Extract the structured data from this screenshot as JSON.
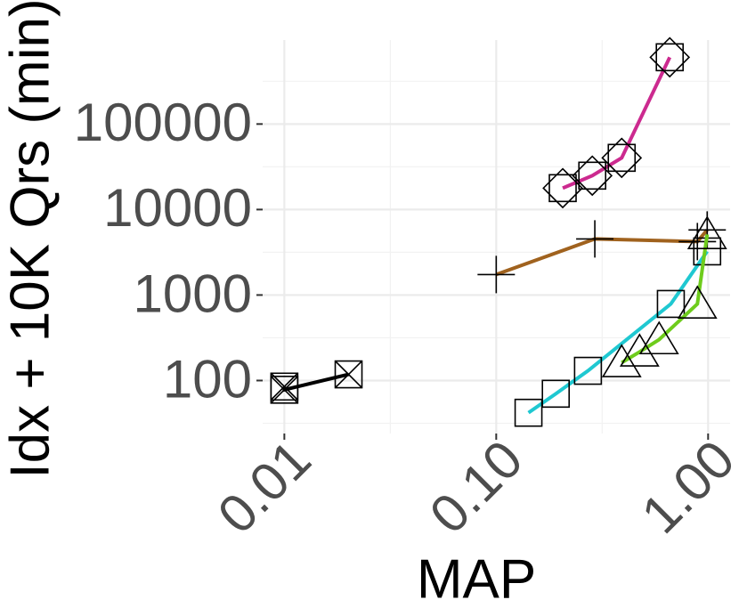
{
  "chart_data": {
    "type": "line",
    "x_label": "MAP",
    "y_label": "Idx + 10K Qrs (min)",
    "x_log": true,
    "y_log": true,
    "grid": true,
    "xlim": [
      0.0079,
      1.27
    ],
    "ylim": [
      24,
      960000
    ],
    "xticks": [
      {
        "value": 0.01,
        "label": "0.01"
      },
      {
        "value": 0.1,
        "label": "0.10"
      },
      {
        "value": 1,
        "label": "1.00"
      }
    ],
    "yticks": [
      100,
      1000,
      10000,
      100000
    ],
    "series": [
      {
        "marker": "crossed-square",
        "color": "#000000",
        "x": [
          0.01,
          0.01,
          0.0201
        ],
        "values": [
          85,
          78,
          118
        ]
      },
      {
        "marker": "plus",
        "color": "#a0621e",
        "x": [
          0.1,
          0.292,
          0.89,
          0.99
        ],
        "values": [
          1736,
          4530,
          4217,
          5770
        ]
      },
      {
        "marker": "diamond-square",
        "color": "#cc2a8f",
        "x": [
          0.206,
          0.284,
          0.391,
          0.659
        ],
        "values": [
          17800,
          24900,
          40200,
          604000
        ]
      },
      {
        "marker": "square",
        "color": "#1fc8d1",
        "x": [
          0.142,
          0.191,
          0.271,
          0.667,
          0.99
        ],
        "values": [
          42,
          70,
          130,
          787,
          3240
        ]
      },
      {
        "marker": "triangle",
        "color": "#6ecc1c",
        "x": [
          0.391,
          0.475,
          0.587,
          0.89,
          0.99
        ],
        "values": [
          162,
          216,
          301,
          787,
          5110
        ]
      }
    ]
  }
}
